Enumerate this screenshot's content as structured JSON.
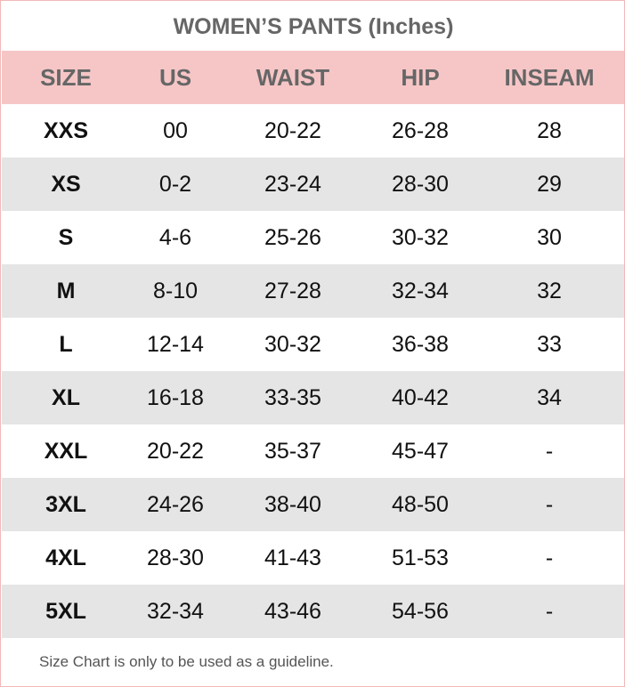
{
  "title": "WOMEN’S PANTS (Inches)",
  "headers": [
    "SIZE",
    "US",
    "WAIST",
    "HIP",
    "INSEAM"
  ],
  "rows": [
    [
      "XXS",
      "00",
      "20-22",
      "26-28",
      "28"
    ],
    [
      "XS",
      "0-2",
      "23-24",
      "28-30",
      "29"
    ],
    [
      "S",
      "4-6",
      "25-26",
      "30-32",
      "30"
    ],
    [
      "M",
      "8-10",
      "27-28",
      "32-34",
      "32"
    ],
    [
      "L",
      "12-14",
      "30-32",
      "36-38",
      "33"
    ],
    [
      "XL",
      "16-18",
      "33-35",
      "40-42",
      "34"
    ],
    [
      "XXL",
      "20-22",
      "35-37",
      "45-47",
      "-"
    ],
    [
      "3XL",
      "24-26",
      "38-40",
      "48-50",
      "-"
    ],
    [
      "4XL",
      "28-30",
      "41-43",
      "51-53",
      "-"
    ],
    [
      "5XL",
      "32-34",
      "43-46",
      "54-56",
      "-"
    ]
  ],
  "footer": "Size Chart is only to be used as a guideline.",
  "colors": {
    "header_bg": "#f6c6c6",
    "alt_row_bg": "#e5e5e5",
    "border": "#f3b8b8",
    "header_text": "#666666"
  }
}
